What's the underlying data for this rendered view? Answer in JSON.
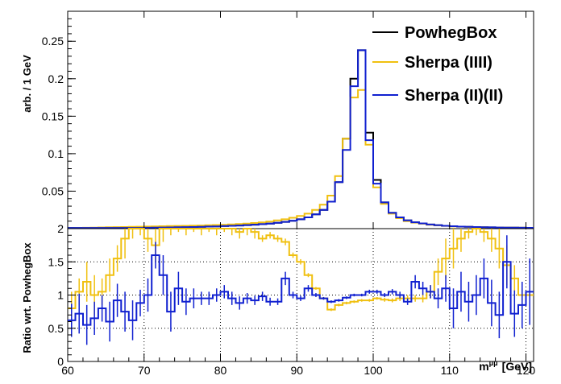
{
  "chart_data": [
    {
      "type": "line",
      "panel": "main",
      "ylabel": "arb. / 1 GeV",
      "xlim": [
        60,
        121
      ],
      "ylim": [
        0,
        0.29
      ],
      "yticks": [
        0.05,
        0.1,
        0.15,
        0.2,
        0.25
      ],
      "ytick_labels": [
        "0.05",
        "0.1",
        "0.15",
        "0.2",
        "0.25"
      ],
      "x_bin_edges_start": 60,
      "bin_width": 1,
      "legend_position": "top-right",
      "legend": [
        "PowhegBox",
        "Sherpa (IIII)",
        "Sherpa (II)(II)"
      ],
      "colors": {
        "powheg": "#000000",
        "sherpa4": "#f0c010",
        "sherpa22": "#1020d0"
      },
      "series": [
        {
          "name": "PowhegBox",
          "values": [
            0.001,
            0.001,
            0.001,
            0.001,
            0.001,
            0.001,
            0.001,
            0.001,
            0.001,
            0.001,
            0.0012,
            0.0013,
            0.0015,
            0.0016,
            0.0018,
            0.002,
            0.0022,
            0.0025,
            0.0028,
            0.003,
            0.0034,
            0.0038,
            0.0042,
            0.0047,
            0.0053,
            0.006,
            0.0068,
            0.0078,
            0.009,
            0.0105,
            0.0125,
            0.015,
            0.019,
            0.025,
            0.036,
            0.062,
            0.12,
            0.2,
            0.238,
            0.128,
            0.065,
            0.035,
            0.021,
            0.015,
            0.011,
            0.0085,
            0.007,
            0.0055,
            0.0045,
            0.0038,
            0.0032,
            0.0027,
            0.0024,
            0.0021,
            0.0019,
            0.0017,
            0.0015,
            0.0014,
            0.0013,
            0.0012,
            0.0011
          ]
        },
        {
          "name": "Sherpa (IIII)",
          "values": [
            0.0008,
            0.001,
            0.0012,
            0.0014,
            0.0016,
            0.0018,
            0.002,
            0.0022,
            0.0024,
            0.0026,
            0.0028,
            0.003,
            0.0032,
            0.0034,
            0.0036,
            0.0038,
            0.004,
            0.0042,
            0.0045,
            0.0048,
            0.0052,
            0.0057,
            0.0062,
            0.0068,
            0.0075,
            0.0084,
            0.0095,
            0.011,
            0.0125,
            0.0145,
            0.017,
            0.02,
            0.025,
            0.032,
            0.044,
            0.07,
            0.12,
            0.175,
            0.185,
            0.112,
            0.055,
            0.033,
            0.02,
            0.014,
            0.01,
            0.008,
            0.0065,
            0.0052,
            0.0043,
            0.0036,
            0.003,
            0.0026,
            0.0023,
            0.002,
            0.0018,
            0.0016,
            0.0015,
            0.0014,
            0.0013,
            0.0012,
            0.0011
          ]
        },
        {
          "name": "Sherpa (II)(II)",
          "values": [
            0.001,
            0.001,
            0.001,
            0.001,
            0.001,
            0.001,
            0.001,
            0.001,
            0.001,
            0.001,
            0.0012,
            0.0013,
            0.0015,
            0.0016,
            0.0018,
            0.002,
            0.0022,
            0.0025,
            0.0028,
            0.003,
            0.0034,
            0.0038,
            0.0042,
            0.0047,
            0.0053,
            0.006,
            0.0068,
            0.0078,
            0.009,
            0.0105,
            0.0125,
            0.015,
            0.019,
            0.025,
            0.036,
            0.062,
            0.105,
            0.19,
            0.238,
            0.118,
            0.06,
            0.035,
            0.021,
            0.015,
            0.011,
            0.0085,
            0.007,
            0.0055,
            0.0045,
            0.0038,
            0.0032,
            0.0027,
            0.0024,
            0.0021,
            0.0019,
            0.0017,
            0.0015,
            0.0014,
            0.0013,
            0.0012,
            0.0011
          ]
        }
      ]
    },
    {
      "type": "line",
      "panel": "ratio",
      "xlabel": "m",
      "xlabel_sup": "μμ",
      "xlabel_unit": "[GeV]",
      "ylabel": "Ratio wrt. PowhegBox",
      "xlim": [
        60,
        121
      ],
      "ylim": [
        0,
        2
      ],
      "xticks": [
        60,
        70,
        80,
        90,
        100,
        110,
        120
      ],
      "xtick_labels": [
        "60",
        "70",
        "80",
        "90",
        "100",
        "110",
        "120"
      ],
      "yticks": [
        0,
        0.5,
        1,
        1.5,
        2
      ],
      "ytick_labels": [
        "0",
        "0.5",
        "1",
        "1.5",
        "2"
      ],
      "grid": true,
      "x_bin_edges_start": 60,
      "bin_width": 1,
      "series": [
        {
          "name": "Sherpa (IIII)",
          "values": [
            0.8,
            1.05,
            1.2,
            1.0,
            1.05,
            1.3,
            1.55,
            1.85,
            2.0,
            2.0,
            1.85,
            1.75,
            2.0,
            2.0,
            2.0,
            2.0,
            2.0,
            2.0,
            2.0,
            2.0,
            2.0,
            2.0,
            1.95,
            2.0,
            1.95,
            1.85,
            1.9,
            1.85,
            1.8,
            1.6,
            1.5,
            1.3,
            1.1,
            0.95,
            0.78,
            0.85,
            0.88,
            0.9,
            0.92,
            0.92,
            0.95,
            0.93,
            0.92,
            0.95,
            0.95,
            0.95,
            0.95,
            1.05,
            1.35,
            1.55,
            1.7,
            1.85,
            1.95,
            2.0,
            1.95,
            1.85,
            1.7,
            1.45,
            1.25,
            1.0,
            1.0
          ],
          "errors": [
            0.25,
            0.2,
            0.3,
            0.3,
            0.2,
            0.25,
            0.2,
            0.3,
            0.15,
            0.1,
            0.2,
            0.25,
            0.2,
            0.1,
            0.05,
            0.1,
            0.05,
            0.1,
            0.05,
            0.1,
            0.05,
            0.1,
            0.1,
            0.1,
            0.1,
            0.05,
            0.05,
            0.05,
            0.05,
            0.04,
            0.04,
            0.03,
            0.02,
            0.02,
            0.02,
            0.02,
            0.02,
            0.02,
            0.02,
            0.02,
            0.02,
            0.03,
            0.03,
            0.04,
            0.05,
            0.05,
            0.06,
            0.1,
            0.2,
            0.3,
            0.3,
            0.2,
            0.1,
            0.1,
            0.15,
            0.2,
            0.3,
            0.3,
            0.2,
            0.1,
            0.1
          ]
        },
        {
          "name": "Sherpa (II)(II)",
          "values": [
            0.62,
            0.72,
            0.55,
            0.65,
            0.8,
            0.6,
            0.92,
            0.75,
            0.62,
            0.88,
            1.0,
            1.6,
            1.3,
            0.75,
            1.1,
            0.9,
            0.95,
            0.95,
            0.95,
            1.0,
            1.05,
            0.95,
            0.88,
            0.95,
            0.92,
            0.98,
            0.9,
            0.9,
            1.25,
            1.0,
            0.95,
            1.1,
            1.0,
            0.95,
            0.9,
            0.92,
            0.96,
            1.0,
            1.0,
            1.05,
            1.05,
            1.0,
            1.05,
            1.0,
            0.9,
            1.2,
            1.1,
            1.05,
            0.95,
            1.1,
            0.8,
            1.05,
            0.9,
            1.0,
            1.25,
            0.88,
            0.7,
            1.5,
            0.72,
            0.85,
            1.05
          ],
          "errors": [
            0.25,
            0.3,
            0.3,
            0.25,
            0.2,
            0.3,
            0.25,
            0.3,
            0.3,
            0.2,
            0.25,
            0.2,
            0.3,
            0.3,
            0.25,
            0.2,
            0.15,
            0.1,
            0.1,
            0.1,
            0.1,
            0.1,
            0.1,
            0.08,
            0.07,
            0.07,
            0.06,
            0.05,
            0.1,
            0.05,
            0.04,
            0.05,
            0.03,
            0.02,
            0.02,
            0.02,
            0.02,
            0.02,
            0.02,
            0.03,
            0.03,
            0.03,
            0.04,
            0.05,
            0.05,
            0.1,
            0.1,
            0.1,
            0.15,
            0.2,
            0.3,
            0.3,
            0.3,
            0.3,
            0.3,
            0.35,
            0.35,
            0.4,
            0.35,
            0.35,
            0.5
          ]
        }
      ]
    }
  ]
}
